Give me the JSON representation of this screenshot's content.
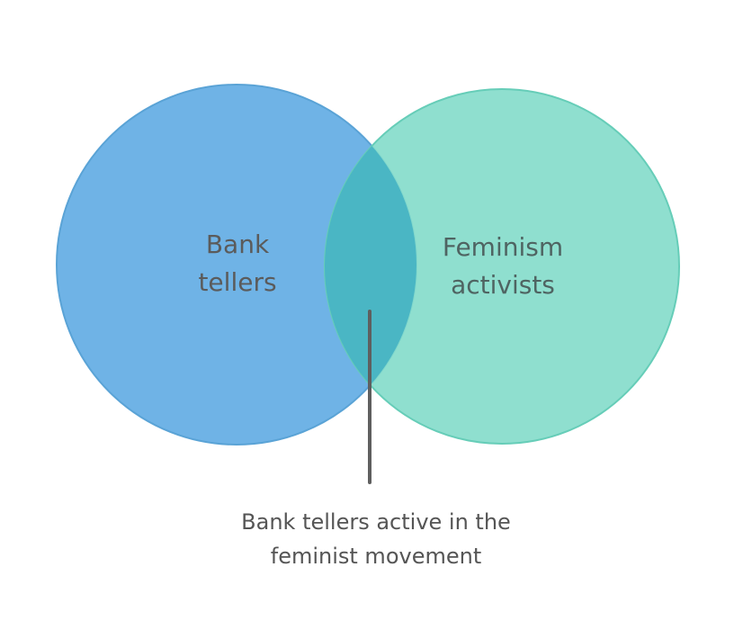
{
  "sets": [
    {
      "label": "Bank\ntellers",
      "color": "#6fb3e6",
      "stroke": "#5aa3d6"
    },
    {
      "label": "Feminism\nactivists",
      "color": "#86dccb",
      "stroke": "#66cdb8"
    }
  ],
  "intersection": {
    "color": "#4ab6c4",
    "caption": "Bank tellers active in the\nfeminist movement"
  },
  "pointer_color": "#5f5f5f"
}
